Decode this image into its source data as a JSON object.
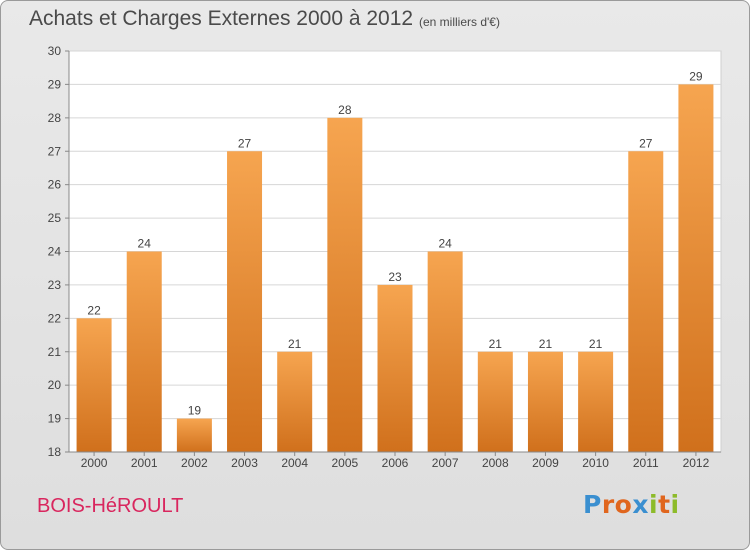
{
  "page": {
    "title": "Achats et Charges Externes 2000 à 2012",
    "subtitle": "(en milliers d'€)",
    "place": "BOIS-HéROULT",
    "logo": "Proxiti"
  },
  "colors": {
    "bar_top": "#f6a550",
    "bar_bottom": "#d0701c",
    "place_text": "#d9265e",
    "logo_letters": [
      "#3a8fd0",
      "#e0661e",
      "#e0661e",
      "#3a8fd0",
      "#8dbb2a",
      "#e0661e",
      "#8dbb2a"
    ]
  },
  "chart_data": {
    "type": "bar",
    "title": "Achats et Charges Externes 2000 à 2012",
    "subtitle": "(en milliers d'€)",
    "categories": [
      "2000",
      "2001",
      "2002",
      "2003",
      "2004",
      "2005",
      "2006",
      "2007",
      "2008",
      "2009",
      "2010",
      "2011",
      "2012"
    ],
    "values": [
      22,
      24,
      19,
      27,
      21,
      28,
      23,
      24,
      21,
      21,
      21,
      27,
      29
    ],
    "ylim": [
      18,
      30
    ],
    "yticks": [
      18,
      19,
      20,
      21,
      22,
      23,
      24,
      25,
      26,
      27,
      28,
      29,
      30
    ],
    "grid": true,
    "xlabel": "",
    "ylabel": ""
  }
}
